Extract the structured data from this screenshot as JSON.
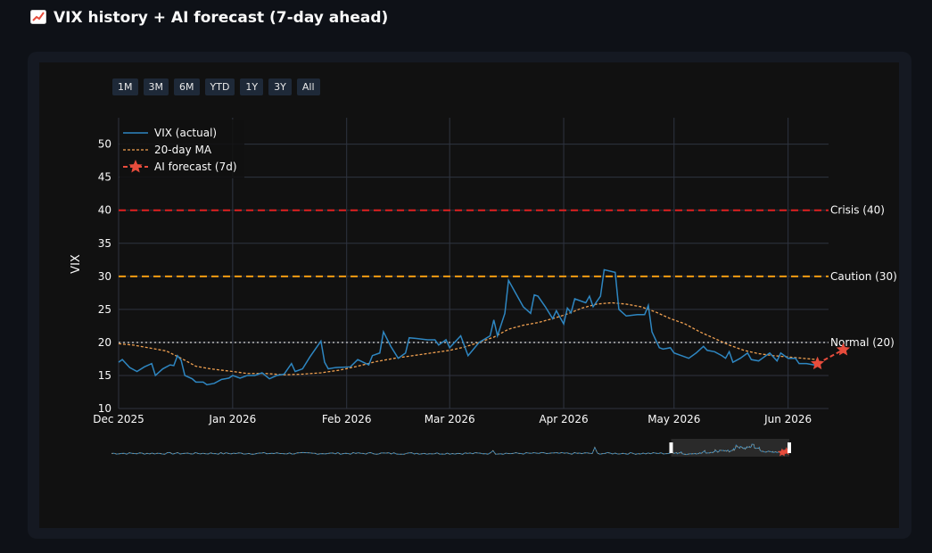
{
  "page": {
    "title": "VIX history + AI forecast (7-day ahead)",
    "title_icon": "chart-increasing-icon"
  },
  "range_selector": {
    "buttons": [
      "1M",
      "3M",
      "6M",
      "YTD",
      "1Y",
      "3Y",
      "All"
    ]
  },
  "colors": {
    "background": "#0e1117",
    "panel": "#151922",
    "plot_bg": "#111111",
    "vix_line": "#2e86c1",
    "ma_line": "#f0a050",
    "forecast": "#e74c3c",
    "crisis": "#e02020",
    "caution": "#f39c12",
    "normal": "#aaaaaa",
    "grid": "#2f3440",
    "text": "#fafafa"
  },
  "chart_data": {
    "type": "line",
    "ylabel": "VIX",
    "xlabel": "",
    "ylim": [
      10,
      54
    ],
    "yticks": [
      10,
      15,
      20,
      25,
      30,
      35,
      40,
      45,
      50
    ],
    "xlim": [
      "2025-12-01",
      "2026-06-12"
    ],
    "xticks": [
      {
        "date": "2025-12-01",
        "label": "Dec 2025"
      },
      {
        "date": "2026-01-01",
        "label": "Jan 2026"
      },
      {
        "date": "2026-02-01",
        "label": "Feb 2026"
      },
      {
        "date": "2026-03-01",
        "label": "Mar 2026"
      },
      {
        "date": "2026-04-01",
        "label": "Apr 2026"
      },
      {
        "date": "2026-05-01",
        "label": "May 2026"
      },
      {
        "date": "2026-06-01",
        "label": "Jun 2026"
      }
    ],
    "grid": true,
    "legend_position": "top-left",
    "reference_lines": [
      {
        "value": 40,
        "label": "Crisis (40)",
        "style": "dashed"
      },
      {
        "value": 30,
        "label": "Caution (30)",
        "style": "dashed"
      },
      {
        "value": 20,
        "label": "Normal (20)",
        "style": "dotted"
      }
    ],
    "series": [
      {
        "name": "VIX (actual)",
        "style": "solid",
        "points": [
          [
            "2025-12-01",
            17.0
          ],
          [
            "2025-12-02",
            17.4
          ],
          [
            "2025-12-04",
            16.2
          ],
          [
            "2025-12-06",
            15.6
          ],
          [
            "2025-12-08",
            16.3
          ],
          [
            "2025-12-10",
            16.8
          ],
          [
            "2025-12-11",
            15.0
          ],
          [
            "2025-12-13",
            16.0
          ],
          [
            "2025-12-15",
            16.6
          ],
          [
            "2025-12-16",
            16.5
          ],
          [
            "2025-12-17",
            18.0
          ],
          [
            "2025-12-18",
            17.3
          ],
          [
            "2025-12-19",
            15.0
          ],
          [
            "2025-12-21",
            14.5
          ],
          [
            "2025-12-22",
            14.0
          ],
          [
            "2025-12-24",
            14.0
          ],
          [
            "2025-12-25",
            13.6
          ],
          [
            "2025-12-27",
            13.8
          ],
          [
            "2025-12-29",
            14.4
          ],
          [
            "2025-12-31",
            14.6
          ],
          [
            "2026-01-01",
            15.0
          ],
          [
            "2026-01-03",
            14.6
          ],
          [
            "2026-01-05",
            15.0
          ],
          [
            "2026-01-07",
            15.0
          ],
          [
            "2026-01-09",
            15.4
          ],
          [
            "2026-01-11",
            14.5
          ],
          [
            "2026-01-13",
            15.0
          ],
          [
            "2026-01-15",
            15.2
          ],
          [
            "2026-01-17",
            16.8
          ],
          [
            "2026-01-18",
            15.6
          ],
          [
            "2026-01-20",
            16.0
          ],
          [
            "2026-01-22",
            17.8
          ],
          [
            "2026-01-25",
            20.2
          ],
          [
            "2026-01-26",
            17.0
          ],
          [
            "2026-01-27",
            16.0
          ],
          [
            "2026-01-29",
            16.2
          ],
          [
            "2026-02-02",
            16.3
          ],
          [
            "2026-02-04",
            17.4
          ],
          [
            "2026-02-07",
            16.6
          ],
          [
            "2026-02-08",
            18.0
          ],
          [
            "2026-02-10",
            18.4
          ],
          [
            "2026-02-11",
            21.6
          ],
          [
            "2026-02-13",
            19.4
          ],
          [
            "2026-02-15",
            17.6
          ],
          [
            "2026-02-17",
            18.4
          ],
          [
            "2026-02-18",
            20.7
          ],
          [
            "2026-02-20",
            20.6
          ],
          [
            "2026-02-23",
            20.4
          ],
          [
            "2026-02-25",
            20.4
          ],
          [
            "2026-02-26",
            19.6
          ],
          [
            "2026-02-28",
            20.4
          ],
          [
            "2026-03-01",
            19.2
          ],
          [
            "2026-03-04",
            21.0
          ],
          [
            "2026-03-06",
            18.0
          ],
          [
            "2026-03-09",
            20.0
          ],
          [
            "2026-03-12",
            21.0
          ],
          [
            "2026-03-13",
            23.4
          ],
          [
            "2026-03-14",
            21.0
          ],
          [
            "2026-03-16",
            24.4
          ],
          [
            "2026-03-17",
            29.4
          ],
          [
            "2026-03-19",
            27.4
          ],
          [
            "2026-03-21",
            25.4
          ],
          [
            "2026-03-23",
            24.4
          ],
          [
            "2026-03-24",
            27.2
          ],
          [
            "2026-03-25",
            27.0
          ],
          [
            "2026-03-27",
            25.4
          ],
          [
            "2026-03-29",
            23.6
          ],
          [
            "2026-03-30",
            24.8
          ],
          [
            "2026-04-01",
            22.8
          ],
          [
            "2026-04-02",
            25.2
          ],
          [
            "2026-04-03",
            24.5
          ],
          [
            "2026-04-04",
            26.6
          ],
          [
            "2026-04-05",
            26.4
          ],
          [
            "2026-04-07",
            26.0
          ],
          [
            "2026-04-08",
            27.0
          ],
          [
            "2026-04-09",
            25.4
          ],
          [
            "2026-04-11",
            27.0
          ],
          [
            "2026-04-12",
            31.0
          ],
          [
            "2026-04-15",
            30.6
          ],
          [
            "2026-04-16",
            25.0
          ],
          [
            "2026-04-18",
            24.0
          ],
          [
            "2026-04-21",
            24.2
          ],
          [
            "2026-04-23",
            24.2
          ],
          [
            "2026-04-24",
            25.6
          ],
          [
            "2026-04-25",
            21.6
          ],
          [
            "2026-04-27",
            19.2
          ],
          [
            "2026-04-28",
            19.0
          ],
          [
            "2026-04-30",
            19.2
          ],
          [
            "2026-05-01",
            18.4
          ],
          [
            "2026-05-03",
            18.0
          ],
          [
            "2026-05-05",
            17.6
          ],
          [
            "2026-05-07",
            18.4
          ],
          [
            "2026-05-09",
            19.4
          ],
          [
            "2026-05-10",
            18.8
          ],
          [
            "2026-05-12",
            18.6
          ],
          [
            "2026-05-14",
            18.0
          ],
          [
            "2026-05-15",
            17.6
          ],
          [
            "2026-05-16",
            18.6
          ],
          [
            "2026-05-17",
            17.0
          ],
          [
            "2026-05-19",
            17.6
          ],
          [
            "2026-05-21",
            18.4
          ],
          [
            "2026-05-22",
            17.4
          ],
          [
            "2026-05-24",
            17.2
          ],
          [
            "2026-05-25",
            17.6
          ],
          [
            "2026-05-27",
            18.4
          ],
          [
            "2026-05-29",
            17.2
          ],
          [
            "2026-05-30",
            18.4
          ],
          [
            "2026-06-01",
            17.6
          ],
          [
            "2026-06-03",
            17.6
          ],
          [
            "2026-06-04",
            16.8
          ],
          [
            "2026-06-06",
            16.8
          ],
          [
            "2026-06-08",
            16.6
          ],
          [
            "2026-06-09",
            17.0
          ]
        ]
      },
      {
        "name": "20-day MA",
        "style": "dotted",
        "points": [
          [
            "2025-12-01",
            19.8
          ],
          [
            "2025-12-05",
            19.6
          ],
          [
            "2025-12-09",
            19.2
          ],
          [
            "2025-12-14",
            18.7
          ],
          [
            "2025-12-18",
            17.6
          ],
          [
            "2025-12-22",
            16.4
          ],
          [
            "2025-12-26",
            16.0
          ],
          [
            "2026-01-01",
            15.6
          ],
          [
            "2026-01-05",
            15.3
          ],
          [
            "2026-01-10",
            15.3
          ],
          [
            "2026-01-15",
            15.1
          ],
          [
            "2026-01-20",
            15.2
          ],
          [
            "2026-01-25",
            15.4
          ],
          [
            "2026-01-30",
            15.8
          ],
          [
            "2026-02-04",
            16.4
          ],
          [
            "2026-02-09",
            17.1
          ],
          [
            "2026-02-14",
            17.6
          ],
          [
            "2026-02-19",
            18.0
          ],
          [
            "2026-02-24",
            18.4
          ],
          [
            "2026-03-01",
            18.8
          ],
          [
            "2026-03-05",
            19.3
          ],
          [
            "2026-03-09",
            20.0
          ],
          [
            "2026-03-13",
            20.8
          ],
          [
            "2026-03-17",
            22.0
          ],
          [
            "2026-03-21",
            22.6
          ],
          [
            "2026-03-25",
            23.0
          ],
          [
            "2026-03-29",
            23.6
          ],
          [
            "2026-04-02",
            24.3
          ],
          [
            "2026-04-06",
            25.2
          ],
          [
            "2026-04-10",
            25.8
          ],
          [
            "2026-04-14",
            26.0
          ],
          [
            "2026-04-18",
            25.8
          ],
          [
            "2026-04-22",
            25.4
          ],
          [
            "2026-04-26",
            24.6
          ],
          [
            "2026-04-30",
            23.6
          ],
          [
            "2026-05-04",
            22.8
          ],
          [
            "2026-05-08",
            21.6
          ],
          [
            "2026-05-12",
            20.6
          ],
          [
            "2026-05-16",
            19.6
          ],
          [
            "2026-05-20",
            18.8
          ],
          [
            "2026-05-24",
            18.3
          ],
          [
            "2026-05-28",
            18.0
          ],
          [
            "2026-06-01",
            17.8
          ],
          [
            "2026-06-05",
            17.6
          ],
          [
            "2026-06-09",
            17.4
          ]
        ]
      },
      {
        "name": "AI forecast (7d)",
        "style": "dashed-star",
        "points": [
          [
            "2026-06-09",
            16.8
          ],
          [
            "2026-06-16",
            18.9
          ]
        ]
      }
    ]
  }
}
